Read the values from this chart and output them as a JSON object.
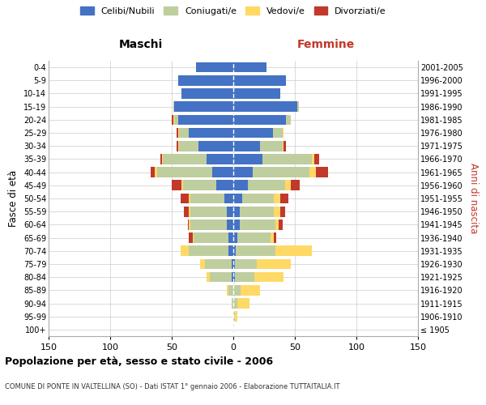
{
  "age_groups": [
    "100+",
    "95-99",
    "90-94",
    "85-89",
    "80-84",
    "75-79",
    "70-74",
    "65-69",
    "60-64",
    "55-59",
    "50-54",
    "45-49",
    "40-44",
    "35-39",
    "30-34",
    "25-29",
    "20-24",
    "15-19",
    "10-14",
    "5-9",
    "0-4"
  ],
  "birth_years": [
    "≤ 1905",
    "1906-1910",
    "1911-1915",
    "1916-1920",
    "1921-1925",
    "1926-1930",
    "1931-1935",
    "1936-1940",
    "1941-1945",
    "1946-1950",
    "1951-1955",
    "1956-1960",
    "1961-1965",
    "1966-1970",
    "1971-1975",
    "1976-1980",
    "1981-1985",
    "1986-1990",
    "1991-1995",
    "1996-2000",
    "2001-2005"
  ],
  "males": {
    "celibi": [
      0,
      0,
      0,
      0,
      1,
      1,
      4,
      4,
      5,
      5,
      7,
      14,
      17,
      22,
      28,
      36,
      45,
      48,
      42,
      45,
      30
    ],
    "coniugati": [
      0,
      0,
      1,
      4,
      18,
      22,
      32,
      28,
      30,
      30,
      28,
      27,
      45,
      35,
      16,
      8,
      3,
      1,
      0,
      0,
      0
    ],
    "vedovi": [
      0,
      0,
      0,
      1,
      3,
      4,
      7,
      1,
      1,
      1,
      1,
      1,
      2,
      1,
      1,
      1,
      1,
      0,
      0,
      0,
      0
    ],
    "divorziati": [
      0,
      0,
      0,
      0,
      0,
      0,
      0,
      3,
      1,
      4,
      7,
      8,
      3,
      1,
      1,
      1,
      1,
      0,
      0,
      0,
      0
    ]
  },
  "females": {
    "nubili": [
      0,
      0,
      0,
      0,
      1,
      1,
      2,
      3,
      5,
      5,
      7,
      12,
      16,
      24,
      22,
      32,
      43,
      52,
      38,
      43,
      27
    ],
    "coniugate": [
      0,
      1,
      3,
      6,
      16,
      18,
      32,
      27,
      29,
      28,
      26,
      30,
      46,
      40,
      18,
      8,
      4,
      1,
      0,
      0,
      0
    ],
    "vedove": [
      0,
      2,
      10,
      16,
      24,
      28,
      30,
      3,
      3,
      5,
      5,
      5,
      5,
      2,
      1,
      1,
      0,
      0,
      0,
      0,
      0
    ],
    "divorziate": [
      0,
      0,
      0,
      0,
      0,
      0,
      0,
      2,
      3,
      4,
      7,
      7,
      10,
      4,
      2,
      0,
      0,
      0,
      0,
      0,
      0
    ]
  },
  "colors": {
    "celibi": "#4472C4",
    "coniugati": "#BFCE9E",
    "vedovi": "#FFD966",
    "divorziati": "#C0392B"
  },
  "xlim": 150,
  "title_main": "Popolazione per età, sesso e stato civile - 2006",
  "title_sub": "COMUNE DI PONTE IN VALTELLINA (SO) - Dati ISTAT 1° gennaio 2006 - Elaborazione TUTTAITALIA.IT",
  "ylabel_left": "Fasce di età",
  "ylabel_right": "Anni di nascita",
  "legend_labels": [
    "Celibi/Nubili",
    "Coniugati/e",
    "Vedovi/e",
    "Divorziati/e"
  ],
  "maschi_label": "Maschi",
  "femmine_label": "Femmine"
}
